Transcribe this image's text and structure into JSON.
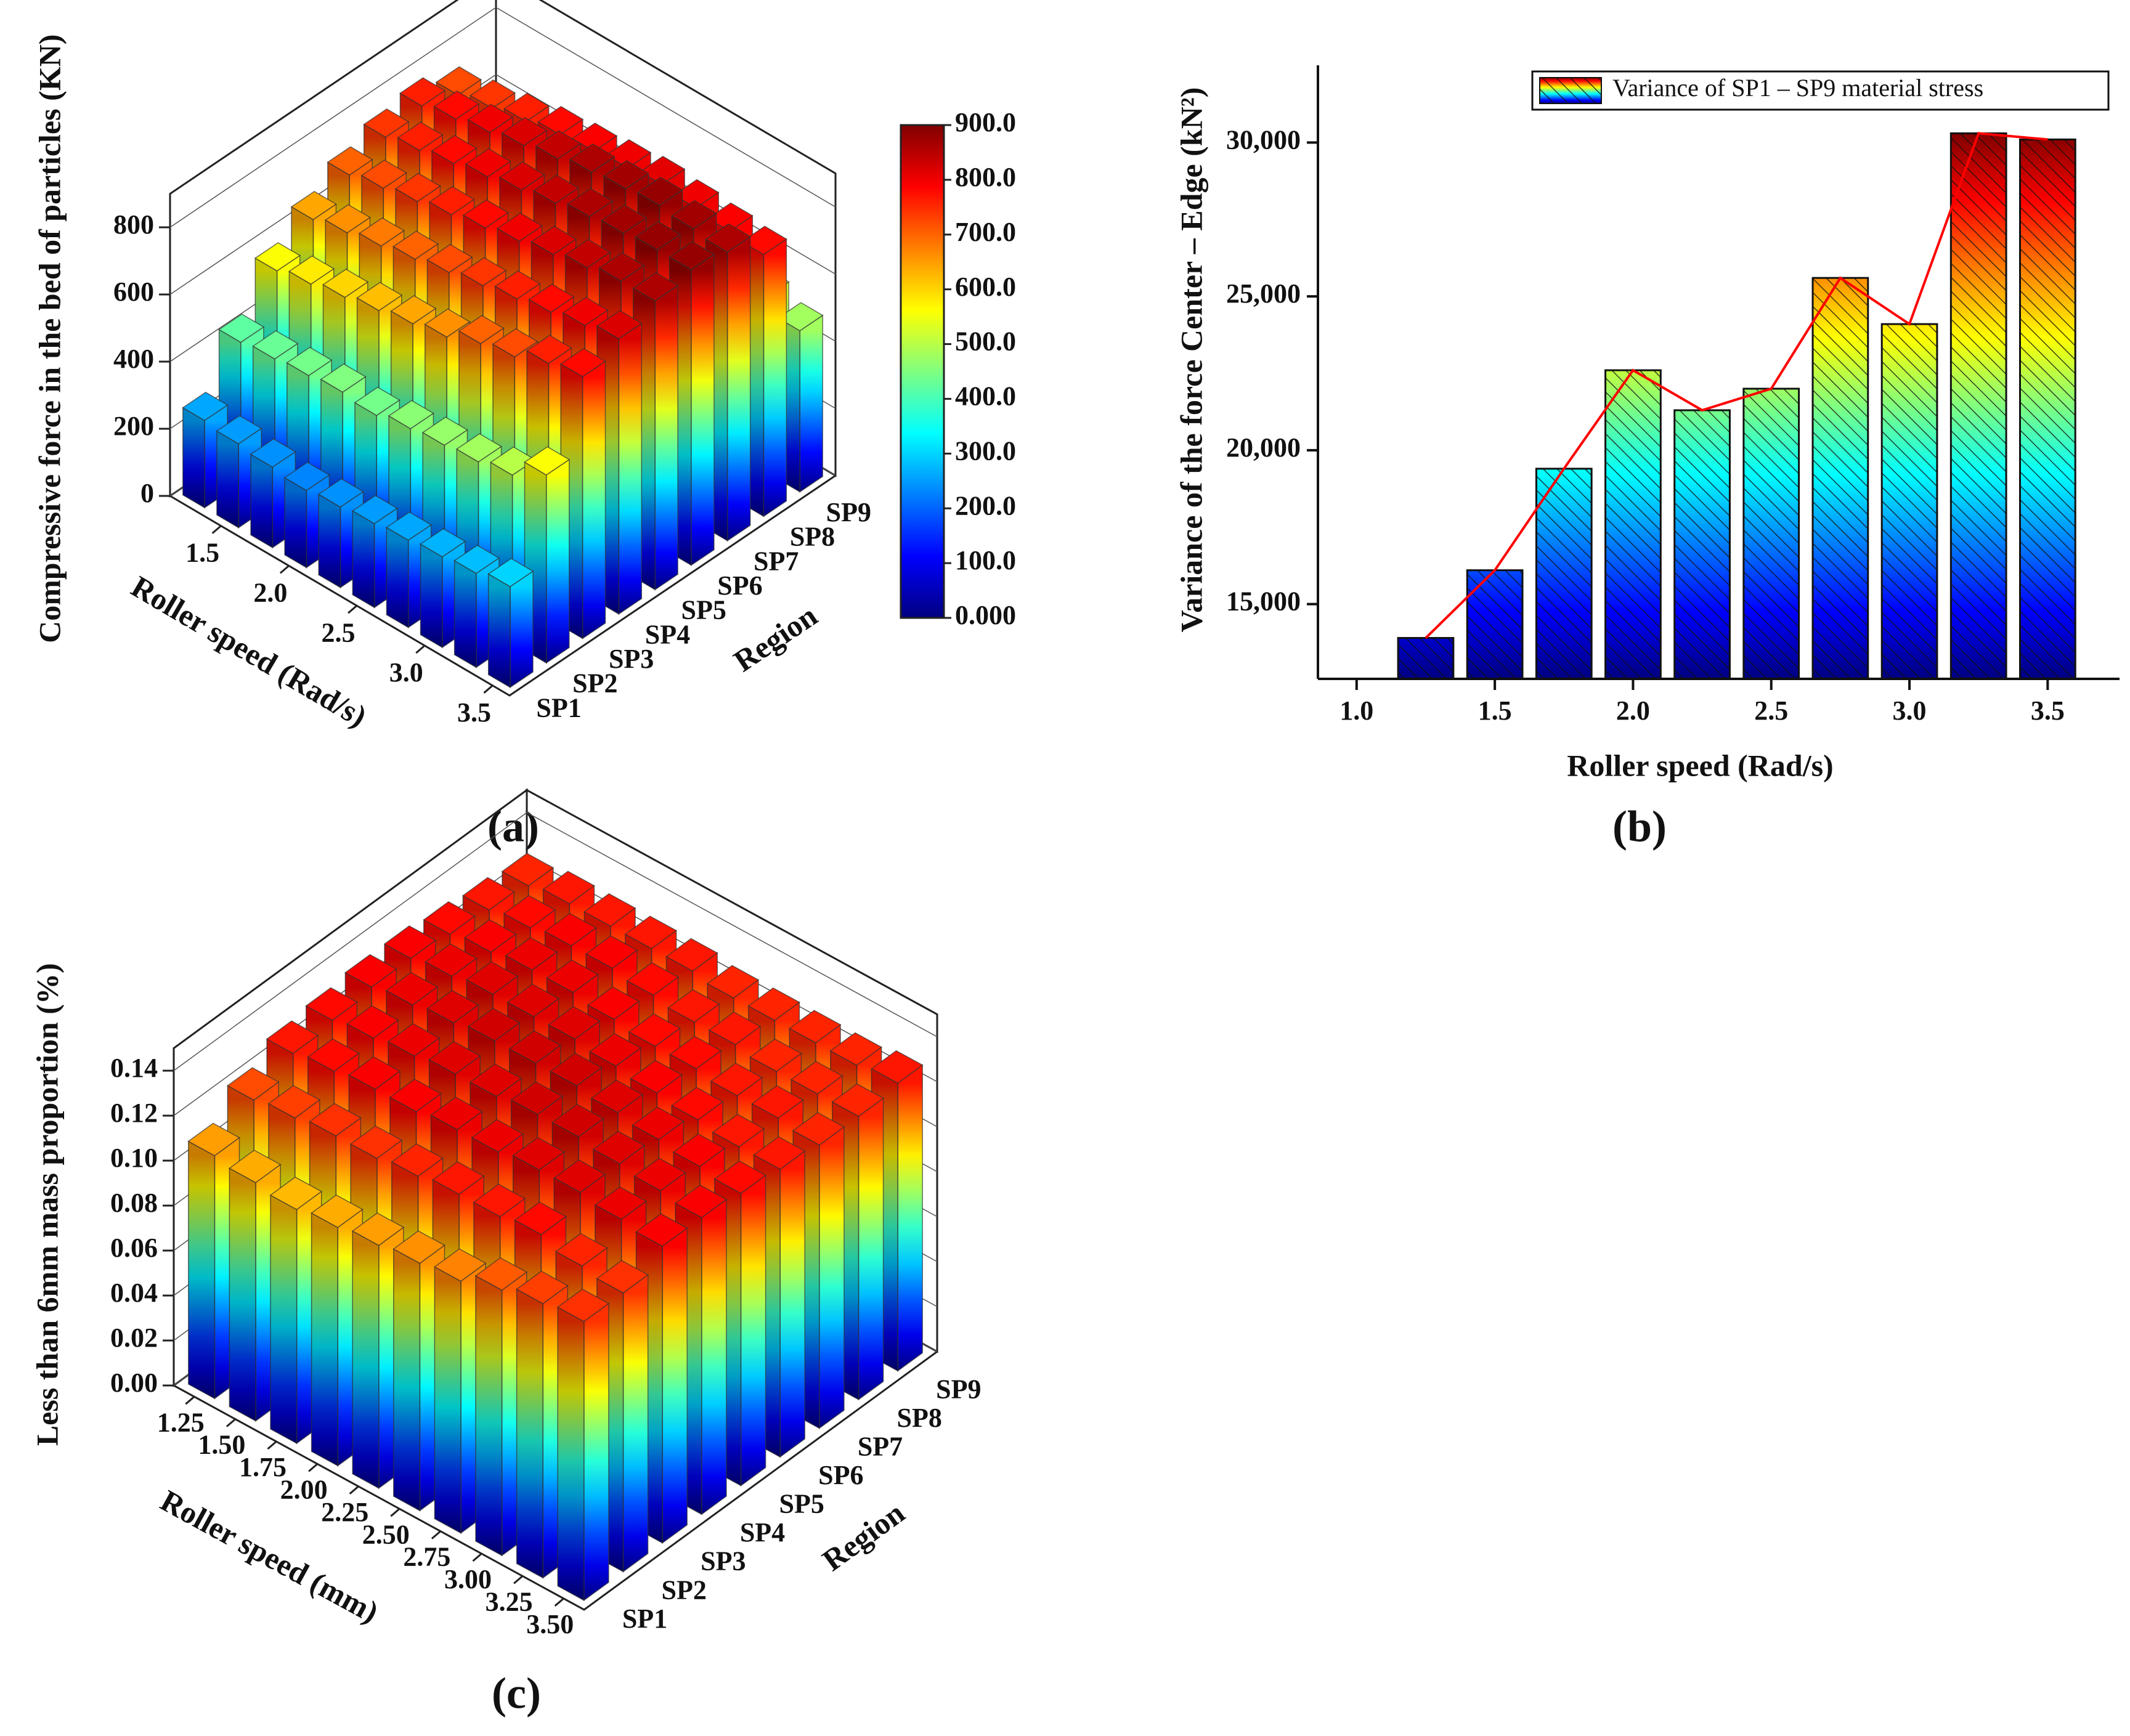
{
  "chart_data": [
    {
      "type": "bar3d",
      "panel": "(a)",
      "xlabel": "Roller speed (Rad/s)",
      "ylabel": "Region",
      "zlabel": "Compressive force in the bed of particles (KN)",
      "x": [
        1.25,
        1.5,
        1.75,
        2.0,
        2.25,
        2.5,
        2.75,
        3.0,
        3.25,
        3.5
      ],
      "categories": [
        "SP1",
        "SP2",
        "SP3",
        "SP4",
        "SP5",
        "SP6",
        "SP7",
        "SP8",
        "SP9"
      ],
      "values": [
        [
          260,
          250,
          240,
          230,
          240,
          250,
          260,
          270,
          280,
          300
        ],
        [
          420,
          430,
          440,
          450,
          440,
          460,
          470,
          480,
          500,
          560
        ],
        [
          560,
          580,
          600,
          620,
          640,
          660,
          700,
          720,
          760,
          780
        ],
        [
          640,
          660,
          680,
          700,
          720,
          740,
          760,
          780,
          800,
          820
        ],
        [
          700,
          720,
          740,
          760,
          780,
          800,
          820,
          840,
          860,
          860
        ],
        [
          740,
          760,
          780,
          800,
          820,
          840,
          860,
          870,
          880,
          880
        ],
        [
          760,
          780,
          800,
          820,
          840,
          860,
          870,
          880,
          870,
          860
        ],
        [
          720,
          740,
          760,
          780,
          790,
          800,
          810,
          800,
          790,
          780
        ],
        [
          500,
          520,
          540,
          560,
          560,
          580,
          560,
          540,
          520,
          480
        ]
      ],
      "xlim": [
        1.125,
        3.625
      ],
      "xticks": [
        1.5,
        {
          "value": 2.0,
          "label": "2.0"
        },
        2.5,
        {
          "value": 3.0,
          "label": "3.0"
        },
        3.5
      ],
      "zlim": [
        0,
        900
      ],
      "zticks": [
        0,
        200,
        400,
        600,
        800
      ],
      "colormap": "jet",
      "colorbar": {
        "lim": [
          0,
          900
        ],
        "ticks": [
          {
            "value": 0,
            "label": "0.000"
          },
          {
            "value": 100,
            "label": "100.0"
          },
          {
            "value": 200,
            "label": "200.0"
          },
          {
            "value": 300,
            "label": "300.0"
          },
          {
            "value": 400,
            "label": "400.0"
          },
          {
            "value": 500,
            "label": "500.0"
          },
          {
            "value": 600,
            "label": "600.0"
          },
          {
            "value": 700,
            "label": "700.0"
          },
          {
            "value": 800,
            "label": "800.0"
          },
          {
            "value": 900,
            "label": "900.0"
          }
        ]
      }
    },
    {
      "type": "bar",
      "panel": "(b)",
      "xlabel": "Roller speed (Rad/s)",
      "ylabel": "Variance of the force Center – Edge (kN²)",
      "x": [
        1.25,
        1.5,
        1.75,
        2.0,
        2.25,
        2.5,
        2.75,
        3.0,
        3.25,
        3.5
      ],
      "values": [
        13900,
        16100,
        19400,
        22600,
        21300,
        22000,
        25600,
        24100,
        30300,
        30100
      ],
      "xlim": [
        0.86,
        3.76
      ],
      "ylim": [
        12570,
        32510
      ],
      "xticks": [
        {
          "value": 1.0,
          "label": "1.0"
        },
        1.5,
        {
          "value": 2.0,
          "label": "2.0"
        },
        2.5,
        {
          "value": 3.0,
          "label": "3.0"
        },
        3.5
      ],
      "yticks": [
        {
          "value": 15000,
          "label": "15,000"
        },
        {
          "value": 20000,
          "label": "20,000"
        },
        {
          "value": 25000,
          "label": "25,000"
        },
        {
          "value": 30000,
          "label": "30,000"
        }
      ],
      "colormap": "jet",
      "hatch": true,
      "line_color": "#ff0000",
      "legend": {
        "label": "Variance of SP1 – SP9 material stress",
        "position": "upper right"
      }
    },
    {
      "type": "bar3d",
      "panel": "(c)",
      "xlabel": "Roller speed (mm)",
      "ylabel": "Region",
      "zlabel": "Less than 6mm mass proportion (%)",
      "x": [
        1.25,
        1.5,
        1.75,
        2.0,
        2.25,
        2.5,
        2.75,
        3.0,
        3.25,
        3.5
      ],
      "categories": [
        "SP1",
        "SP2",
        "SP3",
        "SP4",
        "SP5",
        "SP6",
        "SP7",
        "SP8",
        "SP9"
      ],
      "values": [
        [
          0.108,
          0.106,
          0.104,
          0.106,
          0.108,
          0.11,
          0.112,
          0.118,
          0.122,
          0.124
        ],
        [
          0.12,
          0.122,
          0.124,
          0.124,
          0.126,
          0.128,
          0.128,
          0.13,
          0.126,
          0.124
        ],
        [
          0.128,
          0.13,
          0.132,
          0.132,
          0.134,
          0.134,
          0.136,
          0.136,
          0.134,
          0.132
        ],
        [
          0.13,
          0.132,
          0.134,
          0.136,
          0.136,
          0.138,
          0.138,
          0.136,
          0.134,
          0.132
        ],
        [
          0.132,
          0.134,
          0.136,
          0.138,
          0.138,
          0.138,
          0.136,
          0.134,
          0.132,
          0.13
        ],
        [
          0.132,
          0.134,
          0.136,
          0.136,
          0.136,
          0.134,
          0.132,
          0.13,
          0.128,
          0.128
        ],
        [
          0.13,
          0.132,
          0.134,
          0.134,
          0.132,
          0.13,
          0.13,
          0.128,
          0.128,
          0.126
        ],
        [
          0.128,
          0.13,
          0.132,
          0.132,
          0.13,
          0.128,
          0.128,
          0.126,
          0.126,
          0.126
        ],
        [
          0.126,
          0.128,
          0.128,
          0.128,
          0.128,
          0.126,
          0.126,
          0.126,
          0.126,
          0.128
        ]
      ],
      "xlim": [
        1.125,
        3.625
      ],
      "xticks": [
        1.25,
        {
          "value": 1.5,
          "label": "1.50"
        },
        1.75,
        {
          "value": 2.0,
          "label": "2.00"
        },
        2.25,
        {
          "value": 2.5,
          "label": "2.50"
        },
        2.75,
        {
          "value": 3.0,
          "label": "3.00"
        },
        3.25,
        {
          "value": 3.5,
          "label": "3.50"
        }
      ],
      "zlim": [
        0,
        0.15
      ],
      "zticks": [
        {
          "value": 0,
          "label": "0.00"
        },
        0.02,
        0.04,
        0.06,
        0.08,
        {
          "value": 0.1,
          "label": "0.10"
        },
        0.12,
        0.14
      ],
      "colormap": "jet"
    }
  ]
}
